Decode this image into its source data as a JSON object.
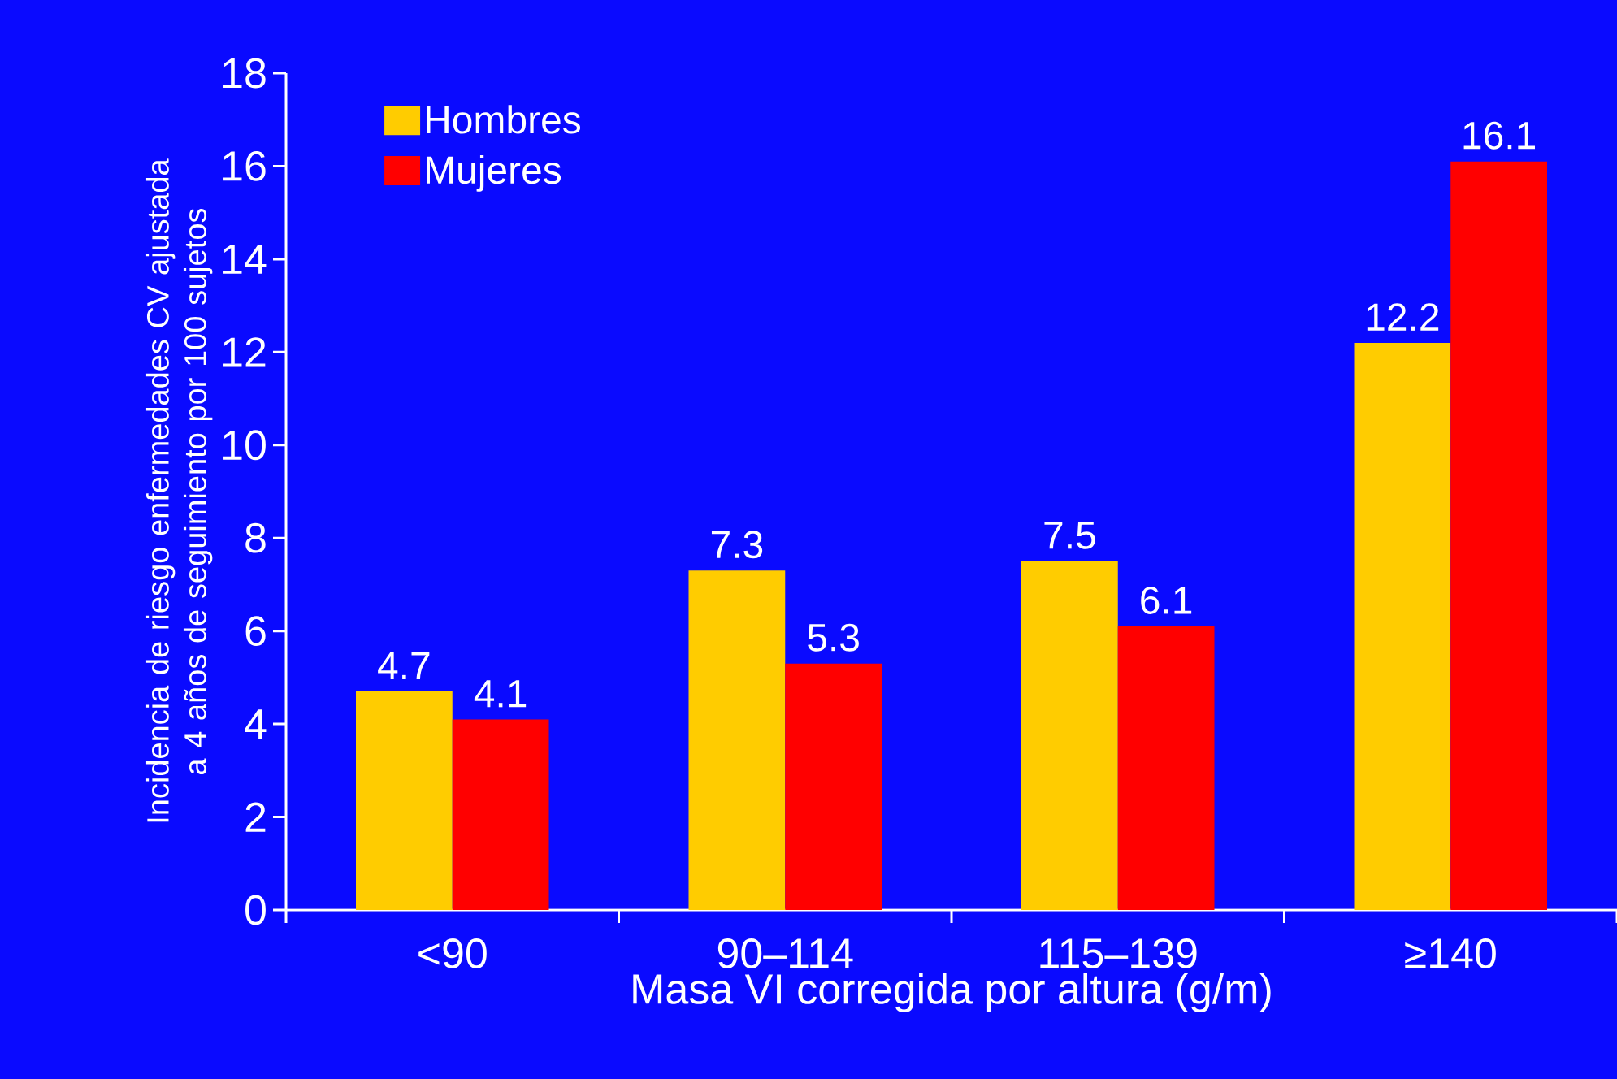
{
  "chart_data": {
    "type": "bar",
    "xlabel": "Masa VI corregida por altura (g/m)",
    "ylabel": "Incidencia de riesgo enfermedades CV ajustada a 4 años de seguimiento por 100 sujetos",
    "categories": [
      "<90",
      "90–114",
      "115–139",
      "≥140"
    ],
    "series": [
      {
        "name": "Hombres",
        "color": "#ffcc00",
        "values": [
          4.7,
          7.3,
          7.5,
          12.2
        ]
      },
      {
        "name": "Mujeres",
        "color": "#ff0000",
        "values": [
          4.1,
          5.3,
          6.1,
          16.1
        ]
      }
    ],
    "ylim": [
      0,
      18
    ],
    "yticks": [
      0,
      2,
      4,
      6,
      8,
      10,
      12,
      14,
      16,
      18
    ],
    "data_labels": true,
    "legend": "top left"
  }
}
